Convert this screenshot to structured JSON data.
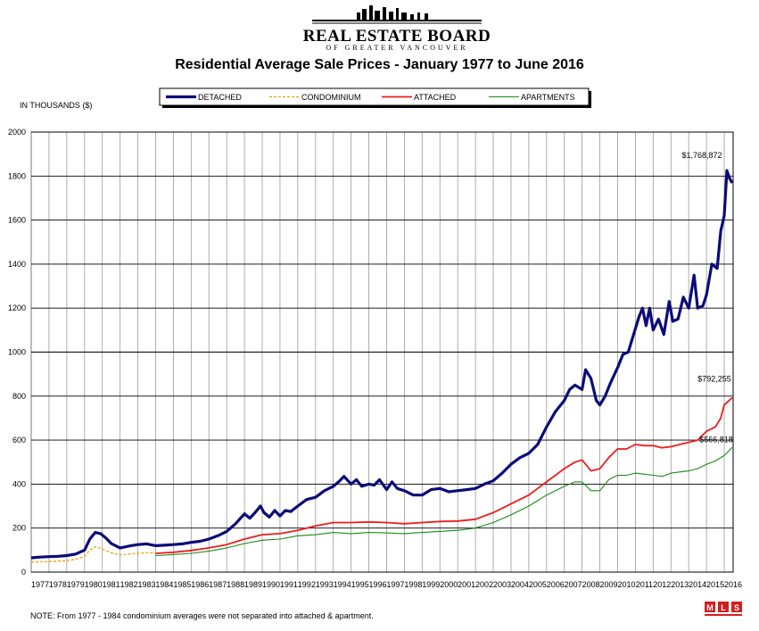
{
  "header": {
    "logo_title": "REAL ESTATE BOARD",
    "logo_subtitle": "OF GREATER VANCOUVER",
    "title": "Residential Average Sale Prices  -  January 1977 to June 2016",
    "units_label": "IN THOUSANDS ($)"
  },
  "footer": {
    "note": "NOTE:  From 1977 - 1984 condominium averages were not separated into attached & apartment.",
    "mls_logo": "MLS"
  },
  "chart_data": {
    "type": "line",
    "title": "Residential Average Sale Prices  -  January 1977 to June 2016",
    "ylabel": "IN THOUSANDS ($)",
    "xlabel": "",
    "ylim": [
      0,
      2000
    ],
    "xlim": [
      1977,
      2016.5
    ],
    "grid": true,
    "legend_position": "top-center",
    "x_ticks": [
      "1977",
      "1978",
      "1979",
      "1980",
      "1981",
      "1982",
      "1983",
      "1984",
      "1985",
      "1986",
      "1987",
      "1988",
      "1989",
      "1990",
      "1991",
      "1992",
      "1993",
      "1994",
      "1995",
      "1996",
      "1997",
      "1998",
      "1999",
      "2000",
      "2001",
      "2002",
      "2003",
      "2004",
      "2005",
      "2006",
      "2007",
      "2008",
      "2009",
      "2010",
      "2011",
      "2012",
      "2013",
      "2014",
      "2015",
      "2016"
    ],
    "y_ticks": [
      "0",
      "200",
      "400",
      "600",
      "800",
      "1000",
      "1200",
      "1400",
      "1600",
      "1800",
      "2000"
    ],
    "annotations": [
      {
        "text": "$1,768,872",
        "series": "DETACHED"
      },
      {
        "text": "$792,255",
        "series": "ATTACHED"
      },
      {
        "text": "$566,818",
        "series": "APARTMENTS"
      }
    ],
    "series": [
      {
        "name": "DETACHED",
        "color": "#0b0b7a",
        "style": "solid",
        "points": [
          [
            1977.0,
            65
          ],
          [
            1977.5,
            68
          ],
          [
            1978.0,
            70
          ],
          [
            1978.5,
            72
          ],
          [
            1979.0,
            75
          ],
          [
            1979.5,
            82
          ],
          [
            1980.0,
            100
          ],
          [
            1980.3,
            150
          ],
          [
            1980.6,
            180
          ],
          [
            1980.9,
            175
          ],
          [
            1981.2,
            155
          ],
          [
            1981.5,
            130
          ],
          [
            1981.8,
            118
          ],
          [
            1982.0,
            110
          ],
          [
            1982.3,
            115
          ],
          [
            1982.6,
            120
          ],
          [
            1983.0,
            125
          ],
          [
            1983.5,
            128
          ],
          [
            1984.0,
            120
          ],
          [
            1984.5,
            122
          ],
          [
            1985.0,
            125
          ],
          [
            1985.5,
            128
          ],
          [
            1986.0,
            135
          ],
          [
            1986.5,
            140
          ],
          [
            1987.0,
            150
          ],
          [
            1987.5,
            165
          ],
          [
            1988.0,
            185
          ],
          [
            1988.5,
            220
          ],
          [
            1989.0,
            265
          ],
          [
            1989.3,
            245
          ],
          [
            1989.6,
            270
          ],
          [
            1989.9,
            300
          ],
          [
            1990.1,
            270
          ],
          [
            1990.4,
            250
          ],
          [
            1990.7,
            280
          ],
          [
            1991.0,
            255
          ],
          [
            1991.3,
            280
          ],
          [
            1991.6,
            275
          ],
          [
            1992.0,
            300
          ],
          [
            1992.5,
            330
          ],
          [
            1993.0,
            340
          ],
          [
            1993.5,
            370
          ],
          [
            1994.0,
            390
          ],
          [
            1994.3,
            410
          ],
          [
            1994.6,
            435
          ],
          [
            1995.0,
            400
          ],
          [
            1995.3,
            420
          ],
          [
            1995.6,
            390
          ],
          [
            1996.0,
            400
          ],
          [
            1996.3,
            395
          ],
          [
            1996.6,
            420
          ],
          [
            1997.0,
            375
          ],
          [
            1997.3,
            410
          ],
          [
            1997.6,
            380
          ],
          [
            1998.0,
            370
          ],
          [
            1998.5,
            350
          ],
          [
            1999.0,
            350
          ],
          [
            1999.5,
            375
          ],
          [
            2000.0,
            380
          ],
          [
            2000.5,
            365
          ],
          [
            2001.0,
            370
          ],
          [
            2001.5,
            375
          ],
          [
            2002.0,
            380
          ],
          [
            2002.5,
            400
          ],
          [
            2003.0,
            415
          ],
          [
            2003.5,
            450
          ],
          [
            2004.0,
            490
          ],
          [
            2004.5,
            520
          ],
          [
            2005.0,
            540
          ],
          [
            2005.5,
            580
          ],
          [
            2006.0,
            660
          ],
          [
            2006.5,
            730
          ],
          [
            2007.0,
            780
          ],
          [
            2007.3,
            830
          ],
          [
            2007.6,
            850
          ],
          [
            2008.0,
            830
          ],
          [
            2008.2,
            920
          ],
          [
            2008.5,
            880
          ],
          [
            2008.8,
            780
          ],
          [
            2009.0,
            760
          ],
          [
            2009.3,
            800
          ],
          [
            2009.6,
            860
          ],
          [
            2010.0,
            930
          ],
          [
            2010.3,
            990
          ],
          [
            2010.6,
            1000
          ],
          [
            2010.9,
            1080
          ],
          [
            2011.2,
            1160
          ],
          [
            2011.4,
            1200
          ],
          [
            2011.6,
            1120
          ],
          [
            2011.8,
            1200
          ],
          [
            2012.0,
            1100
          ],
          [
            2012.3,
            1150
          ],
          [
            2012.6,
            1080
          ],
          [
            2012.9,
            1230
          ],
          [
            2013.1,
            1140
          ],
          [
            2013.4,
            1150
          ],
          [
            2013.7,
            1250
          ],
          [
            2014.0,
            1200
          ],
          [
            2014.3,
            1350
          ],
          [
            2014.5,
            1200
          ],
          [
            2014.8,
            1210
          ],
          [
            2015.0,
            1260
          ],
          [
            2015.3,
            1400
          ],
          [
            2015.6,
            1380
          ],
          [
            2015.8,
            1550
          ],
          [
            2016.0,
            1620
          ],
          [
            2016.15,
            1825
          ],
          [
            2016.3,
            1790
          ],
          [
            2016.45,
            1768.872
          ]
        ]
      },
      {
        "name": "CONDOMINIUM",
        "color": "#f0a000",
        "style": "dashed",
        "points": [
          [
            1977.0,
            45
          ],
          [
            1977.5,
            47
          ],
          [
            1978.0,
            48
          ],
          [
            1978.5,
            50
          ],
          [
            1979.0,
            52
          ],
          [
            1979.5,
            58
          ],
          [
            1980.0,
            72
          ],
          [
            1980.3,
            100
          ],
          [
            1980.6,
            115
          ],
          [
            1980.9,
            108
          ],
          [
            1981.2,
            98
          ],
          [
            1981.5,
            88
          ],
          [
            1982.0,
            78
          ],
          [
            1982.5,
            82
          ],
          [
            1983.0,
            85
          ],
          [
            1983.5,
            88
          ],
          [
            1984.0,
            86
          ]
        ]
      },
      {
        "name": "ATTACHED",
        "color": "#ee1c1c",
        "style": "solid",
        "points": [
          [
            1984.0,
            85
          ],
          [
            1985.0,
            90
          ],
          [
            1986.0,
            98
          ],
          [
            1987.0,
            110
          ],
          [
            1988.0,
            125
          ],
          [
            1989.0,
            150
          ],
          [
            1990.0,
            170
          ],
          [
            1991.0,
            175
          ],
          [
            1992.0,
            190
          ],
          [
            1993.0,
            210
          ],
          [
            1994.0,
            225
          ],
          [
            1995.0,
            225
          ],
          [
            1996.0,
            228
          ],
          [
            1997.0,
            225
          ],
          [
            1998.0,
            220
          ],
          [
            1999.0,
            225
          ],
          [
            2000.0,
            230
          ],
          [
            2001.0,
            232
          ],
          [
            2002.0,
            240
          ],
          [
            2003.0,
            270
          ],
          [
            2004.0,
            310
          ],
          [
            2005.0,
            350
          ],
          [
            2006.0,
            410
          ],
          [
            2007.0,
            470
          ],
          [
            2007.6,
            500
          ],
          [
            2008.0,
            510
          ],
          [
            2008.5,
            460
          ],
          [
            2009.0,
            470
          ],
          [
            2009.5,
            520
          ],
          [
            2010.0,
            560
          ],
          [
            2010.5,
            560
          ],
          [
            2011.0,
            580
          ],
          [
            2011.5,
            575
          ],
          [
            2012.0,
            575
          ],
          [
            2012.5,
            565
          ],
          [
            2013.0,
            570
          ],
          [
            2013.5,
            580
          ],
          [
            2014.0,
            590
          ],
          [
            2014.5,
            600
          ],
          [
            2015.0,
            640
          ],
          [
            2015.5,
            660
          ],
          [
            2015.8,
            700
          ],
          [
            2016.0,
            760
          ],
          [
            2016.45,
            792.255
          ]
        ]
      },
      {
        "name": "APARTMENTS",
        "color": "#1a8a1a",
        "style": "solid",
        "points": [
          [
            1984.0,
            75
          ],
          [
            1985.0,
            80
          ],
          [
            1986.0,
            85
          ],
          [
            1987.0,
            95
          ],
          [
            1988.0,
            110
          ],
          [
            1989.0,
            130
          ],
          [
            1990.0,
            145
          ],
          [
            1991.0,
            150
          ],
          [
            1992.0,
            165
          ],
          [
            1993.0,
            170
          ],
          [
            1994.0,
            180
          ],
          [
            1995.0,
            175
          ],
          [
            1996.0,
            180
          ],
          [
            1997.0,
            178
          ],
          [
            1998.0,
            175
          ],
          [
            1999.0,
            180
          ],
          [
            2000.0,
            185
          ],
          [
            2001.0,
            190
          ],
          [
            2002.0,
            200
          ],
          [
            2003.0,
            225
          ],
          [
            2004.0,
            260
          ],
          [
            2005.0,
            300
          ],
          [
            2006.0,
            350
          ],
          [
            2007.0,
            390
          ],
          [
            2007.6,
            410
          ],
          [
            2008.0,
            410
          ],
          [
            2008.5,
            370
          ],
          [
            2009.0,
            370
          ],
          [
            2009.5,
            420
          ],
          [
            2010.0,
            440
          ],
          [
            2010.5,
            440
          ],
          [
            2011.0,
            450
          ],
          [
            2011.5,
            445
          ],
          [
            2012.0,
            440
          ],
          [
            2012.5,
            435
          ],
          [
            2013.0,
            450
          ],
          [
            2013.5,
            455
          ],
          [
            2014.0,
            460
          ],
          [
            2014.5,
            470
          ],
          [
            2015.0,
            490
          ],
          [
            2015.5,
            505
          ],
          [
            2016.0,
            530
          ],
          [
            2016.45,
            566.818
          ]
        ]
      }
    ]
  }
}
